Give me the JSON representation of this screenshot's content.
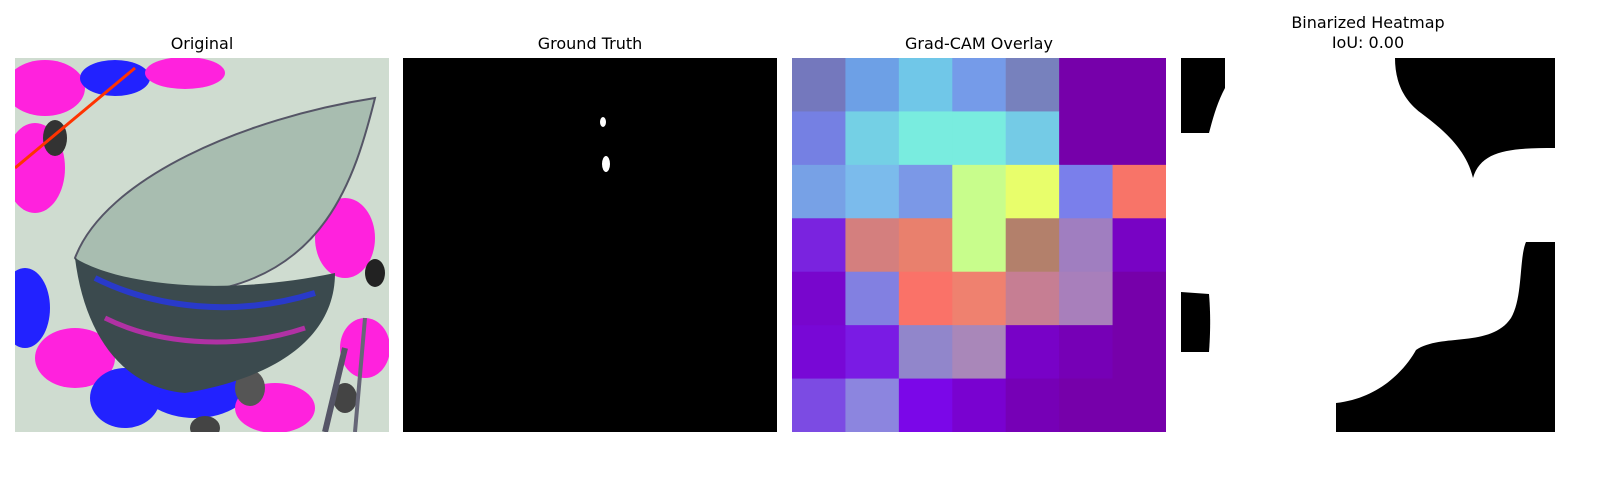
{
  "panels": [
    {
      "title": "Original"
    },
    {
      "title": "Ground Truth"
    },
    {
      "title": "Grad-CAM Overlay"
    },
    {
      "title": "Binarized Heatmap",
      "subtitle": "IoU: 0.00"
    }
  ],
  "gradcam": {
    "rows": 7,
    "cols": 7,
    "cells": [
      [
        "#7478bd",
        "#6da0e6",
        "#70c7e8",
        "#759be9",
        "#7781bd",
        "#7600aa",
        "#7600aa"
      ],
      [
        "#7580e3",
        "#74d0e5",
        "#79ecdf",
        "#79ecdf",
        "#74cbe6",
        "#7600aa",
        "#7600aa"
      ],
      [
        "#77a1e6",
        "#7bbbec",
        "#7b98e7",
        "#c8fd8c",
        "#e8fe6b",
        "#7a7feb",
        "#f87468"
      ],
      [
        "#7a23df",
        "#d47f7e",
        "#e9806d",
        "#c8fd8c",
        "#b3806b",
        "#a07ec0",
        "#7803c4"
      ],
      [
        "#7806cd",
        "#8280e1",
        "#fa7268",
        "#ef816f",
        "#c67e93",
        "#a87fbb",
        "#7600aa"
      ],
      [
        "#7808d6",
        "#7a1be4",
        "#9186cb",
        "#a987b9",
        "#7802c7",
        "#7600b6",
        "#7600aa"
      ],
      [
        "#7c4be3",
        "#8c85df",
        "#7b07e8",
        "#7902d0",
        "#7600b6",
        "#7600aa",
        "#7600aa"
      ]
    ]
  },
  "colors": {
    "background": "#ffffff",
    "mask_foreground": "#ffffff",
    "mask_background": "#000000"
  }
}
